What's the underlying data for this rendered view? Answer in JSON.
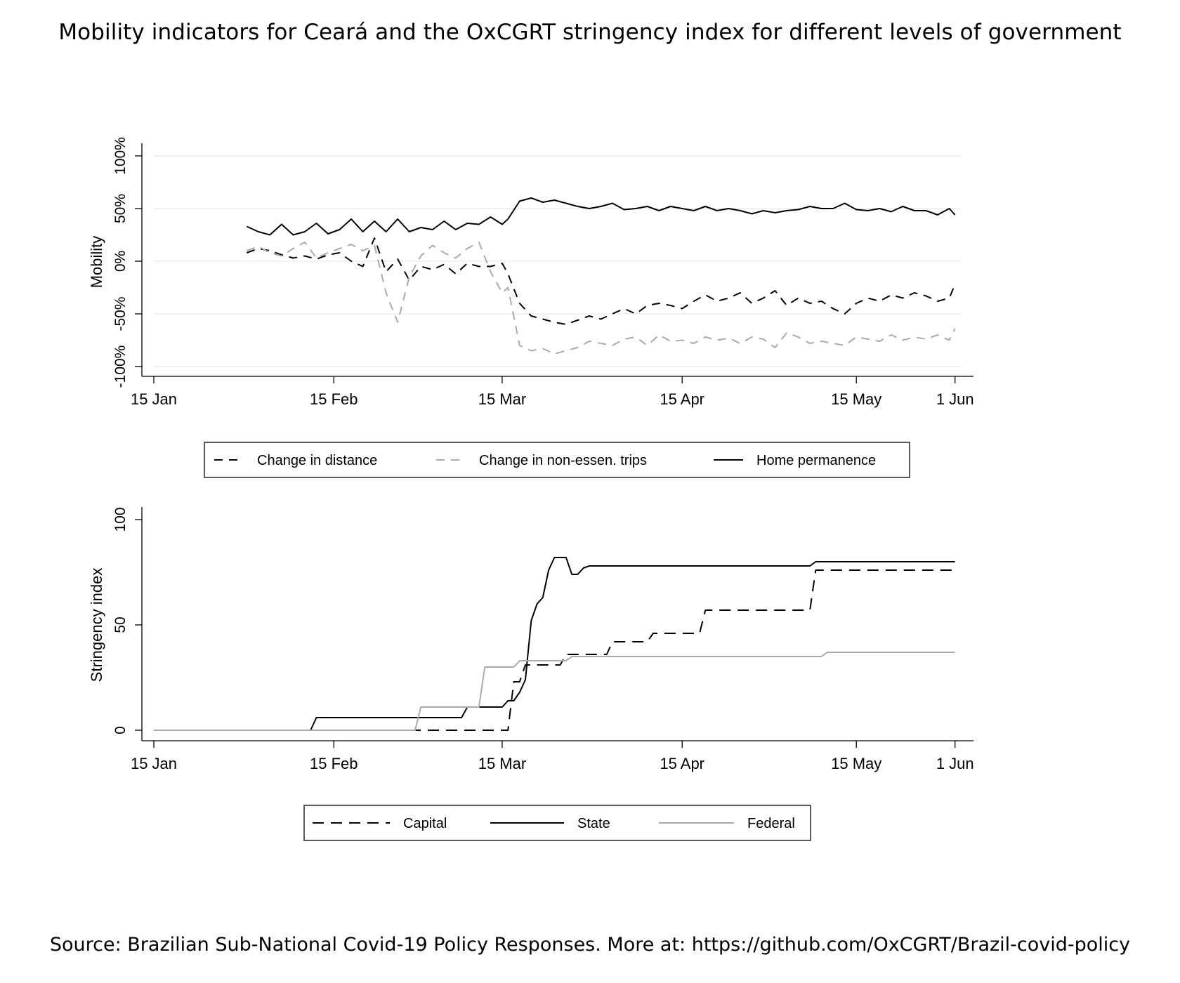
{
  "title": "Mobility indicators for Ceará and the OxCGRT stringency index for different levels of government",
  "source": "Source: Brazilian Sub-National Covid-19 Policy Responses. More at: https://github.com/OxCGRT/Brazil-covid-policy",
  "chart_data": [
    {
      "type": "line",
      "title": "",
      "xlabel": "",
      "ylabel": "Mobility",
      "xlim": [
        "2020-01-15",
        "2020-06-02"
      ],
      "ylim": [
        -100,
        100
      ],
      "x_ticks": [
        {
          "date": "2020-01-15",
          "label": "15 Jan"
        },
        {
          "date": "2020-02-15",
          "label": "15 Feb"
        },
        {
          "date": "2020-03-15",
          "label": "15 Mar"
        },
        {
          "date": "2020-04-15",
          "label": "15 Apr"
        },
        {
          "date": "2020-05-15",
          "label": "15 May"
        },
        {
          "date": "2020-06-01",
          "label": "1 Jun"
        }
      ],
      "y_ticks": [
        {
          "value": -100,
          "label": "-100%"
        },
        {
          "value": -50,
          "label": "-50%"
        },
        {
          "value": 0,
          "label": "0%"
        },
        {
          "value": 50,
          "label": "50%"
        },
        {
          "value": 100,
          "label": "100%"
        }
      ],
      "grid": true,
      "legend_position": "bottom",
      "legend": [
        "Change in distance",
        "Change in non-essen. trips",
        "Home permanence"
      ],
      "series": [
        {
          "name": "Change in distance",
          "color": "#000000",
          "dash": "12 9",
          "x": [
            "2020-01-31",
            "2020-02-02",
            "2020-02-04",
            "2020-02-06",
            "2020-02-08",
            "2020-02-10",
            "2020-02-12",
            "2020-02-14",
            "2020-02-16",
            "2020-02-18",
            "2020-02-20",
            "2020-02-22",
            "2020-02-24",
            "2020-02-26",
            "2020-02-28",
            "2020-03-01",
            "2020-03-03",
            "2020-03-05",
            "2020-03-07",
            "2020-03-09",
            "2020-03-11",
            "2020-03-13",
            "2020-03-15",
            "2020-03-16",
            "2020-03-18",
            "2020-03-20",
            "2020-03-22",
            "2020-03-24",
            "2020-03-26",
            "2020-03-28",
            "2020-03-30",
            "2020-04-01",
            "2020-04-03",
            "2020-04-05",
            "2020-04-07",
            "2020-04-09",
            "2020-04-11",
            "2020-04-13",
            "2020-04-15",
            "2020-04-17",
            "2020-04-19",
            "2020-04-21",
            "2020-04-23",
            "2020-04-25",
            "2020-04-27",
            "2020-04-29",
            "2020-05-01",
            "2020-05-03",
            "2020-05-05",
            "2020-05-07",
            "2020-05-09",
            "2020-05-11",
            "2020-05-13",
            "2020-05-15",
            "2020-05-17",
            "2020-05-19",
            "2020-05-21",
            "2020-05-23",
            "2020-05-25",
            "2020-05-27",
            "2020-05-29",
            "2020-05-31",
            "2020-06-01"
          ],
          "y": [
            8,
            12,
            10,
            6,
            3,
            5,
            2,
            6,
            8,
            0,
            -5,
            22,
            -10,
            2,
            -18,
            -5,
            -8,
            -3,
            -12,
            -2,
            -5,
            -5,
            -2,
            -12,
            -40,
            -52,
            -55,
            -58,
            -60,
            -56,
            -52,
            -55,
            -50,
            -45,
            -50,
            -42,
            -40,
            -42,
            -45,
            -38,
            -32,
            -38,
            -35,
            -30,
            -40,
            -35,
            -28,
            -42,
            -35,
            -40,
            -38,
            -45,
            -50,
            -40,
            -35,
            -38,
            -32,
            -35,
            -30,
            -33,
            -38,
            -35,
            -22
          ]
        },
        {
          "name": "Change in non-essen. trips",
          "color": "#aaaaaa",
          "dash": "12 9",
          "x": [
            "2020-01-31",
            "2020-02-02",
            "2020-02-04",
            "2020-02-06",
            "2020-02-08",
            "2020-02-10",
            "2020-02-12",
            "2020-02-14",
            "2020-02-16",
            "2020-02-18",
            "2020-02-20",
            "2020-02-22",
            "2020-02-24",
            "2020-02-26",
            "2020-02-28",
            "2020-03-01",
            "2020-03-03",
            "2020-03-05",
            "2020-03-07",
            "2020-03-09",
            "2020-03-11",
            "2020-03-13",
            "2020-03-15",
            "2020-03-16",
            "2020-03-18",
            "2020-03-20",
            "2020-03-22",
            "2020-03-24",
            "2020-03-26",
            "2020-03-28",
            "2020-03-30",
            "2020-04-01",
            "2020-04-03",
            "2020-04-05",
            "2020-04-07",
            "2020-04-09",
            "2020-04-11",
            "2020-04-13",
            "2020-04-15",
            "2020-04-17",
            "2020-04-19",
            "2020-04-21",
            "2020-04-23",
            "2020-04-25",
            "2020-04-27",
            "2020-04-29",
            "2020-05-01",
            "2020-05-03",
            "2020-05-05",
            "2020-05-07",
            "2020-05-09",
            "2020-05-11",
            "2020-05-13",
            "2020-05-15",
            "2020-05-17",
            "2020-05-19",
            "2020-05-21",
            "2020-05-23",
            "2020-05-25",
            "2020-05-27",
            "2020-05-29",
            "2020-05-31",
            "2020-06-01"
          ],
          "y": [
            10,
            14,
            8,
            5,
            12,
            18,
            3,
            8,
            12,
            16,
            10,
            15,
            -30,
            -58,
            -15,
            5,
            15,
            8,
            3,
            12,
            18,
            -10,
            -30,
            -25,
            -80,
            -85,
            -83,
            -88,
            -85,
            -82,
            -76,
            -78,
            -80,
            -74,
            -72,
            -80,
            -70,
            -76,
            -75,
            -78,
            -72,
            -75,
            -73,
            -78,
            -72,
            -74,
            -82,
            -68,
            -72,
            -78,
            -76,
            -78,
            -80,
            -72,
            -74,
            -76,
            -70,
            -75,
            -72,
            -74,
            -70,
            -75,
            -64
          ]
        },
        {
          "name": "Home permanence",
          "color": "#000000",
          "dash": "",
          "x": [
            "2020-01-31",
            "2020-02-02",
            "2020-02-04",
            "2020-02-06",
            "2020-02-08",
            "2020-02-10",
            "2020-02-12",
            "2020-02-14",
            "2020-02-16",
            "2020-02-18",
            "2020-02-20",
            "2020-02-22",
            "2020-02-24",
            "2020-02-26",
            "2020-02-28",
            "2020-03-01",
            "2020-03-03",
            "2020-03-05",
            "2020-03-07",
            "2020-03-09",
            "2020-03-11",
            "2020-03-13",
            "2020-03-15",
            "2020-03-16",
            "2020-03-18",
            "2020-03-20",
            "2020-03-22",
            "2020-03-24",
            "2020-03-26",
            "2020-03-28",
            "2020-03-30",
            "2020-04-01",
            "2020-04-03",
            "2020-04-05",
            "2020-04-07",
            "2020-04-09",
            "2020-04-11",
            "2020-04-13",
            "2020-04-15",
            "2020-04-17",
            "2020-04-19",
            "2020-04-21",
            "2020-04-23",
            "2020-04-25",
            "2020-04-27",
            "2020-04-29",
            "2020-05-01",
            "2020-05-03",
            "2020-05-05",
            "2020-05-07",
            "2020-05-09",
            "2020-05-11",
            "2020-05-13",
            "2020-05-15",
            "2020-05-17",
            "2020-05-19",
            "2020-05-21",
            "2020-05-23",
            "2020-05-25",
            "2020-05-27",
            "2020-05-29",
            "2020-05-31",
            "2020-06-01"
          ],
          "y": [
            33,
            28,
            25,
            35,
            25,
            28,
            36,
            26,
            30,
            40,
            28,
            38,
            28,
            40,
            28,
            32,
            30,
            38,
            30,
            36,
            35,
            42,
            35,
            40,
            57,
            60,
            56,
            58,
            55,
            52,
            50,
            52,
            55,
            49,
            50,
            52,
            48,
            52,
            50,
            48,
            52,
            48,
            50,
            48,
            45,
            48,
            46,
            48,
            49,
            52,
            50,
            50,
            55,
            49,
            48,
            50,
            47,
            52,
            48,
            48,
            44,
            50,
            44
          ]
        }
      ]
    },
    {
      "type": "line",
      "title": "",
      "xlabel": "",
      "ylabel": "Stringency index",
      "xlim": [
        "2020-01-15",
        "2020-06-02"
      ],
      "ylim": [
        0,
        100
      ],
      "x_ticks": [
        {
          "date": "2020-01-15",
          "label": "15 Jan"
        },
        {
          "date": "2020-02-15",
          "label": "15 Feb"
        },
        {
          "date": "2020-03-15",
          "label": "15 Mar"
        },
        {
          "date": "2020-04-15",
          "label": "15 Apr"
        },
        {
          "date": "2020-05-15",
          "label": "15 May"
        },
        {
          "date": "2020-06-01",
          "label": "1 Jun"
        }
      ],
      "y_ticks": [
        {
          "value": 0,
          "label": "0"
        },
        {
          "value": 50,
          "label": "50"
        },
        {
          "value": 100,
          "label": "100"
        }
      ],
      "grid": false,
      "legend_position": "bottom",
      "legend": [
        "Capital",
        "State",
        "Federal"
      ],
      "series": [
        {
          "name": "Capital",
          "color": "#000000",
          "dash": "16 10",
          "x": [
            "2020-01-15",
            "2020-03-16",
            "2020-03-17",
            "2020-03-18",
            "2020-03-19",
            "2020-03-20",
            "2020-03-25",
            "2020-03-26",
            "2020-03-28",
            "2020-03-29",
            "2020-04-02",
            "2020-04-03",
            "2020-04-09",
            "2020-04-10",
            "2020-04-18",
            "2020-04-19",
            "2020-05-07",
            "2020-05-08",
            "2020-06-01"
          ],
          "y": [
            0,
            0,
            23,
            23,
            31,
            31,
            31,
            36,
            36,
            36,
            36,
            42,
            42,
            46,
            46,
            57,
            57,
            76,
            76
          ]
        },
        {
          "name": "State",
          "color": "#000000",
          "dash": "",
          "x": [
            "2020-01-15",
            "2020-02-11",
            "2020-02-12",
            "2020-03-08",
            "2020-03-09",
            "2020-03-15",
            "2020-03-16",
            "2020-03-17",
            "2020-03-18",
            "2020-03-19",
            "2020-03-20",
            "2020-03-21",
            "2020-03-22",
            "2020-03-23",
            "2020-03-24",
            "2020-03-26",
            "2020-03-27",
            "2020-03-28",
            "2020-03-29",
            "2020-03-30",
            "2020-04-01",
            "2020-05-07",
            "2020-05-08",
            "2020-06-01"
          ],
          "y": [
            0,
            0,
            6,
            6,
            11,
            11,
            14,
            14,
            18,
            24,
            52,
            60,
            63,
            76,
            82,
            82,
            74,
            74,
            77,
            78,
            78,
            78,
            80,
            80
          ]
        },
        {
          "name": "Federal",
          "color": "#aaaaaa",
          "dash": "",
          "x": [
            "2020-01-15",
            "2020-02-29",
            "2020-03-01",
            "2020-03-11",
            "2020-03-12",
            "2020-03-17",
            "2020-03-18",
            "2020-03-26",
            "2020-03-27",
            "2020-05-09",
            "2020-05-10",
            "2020-06-01"
          ],
          "y": [
            0,
            0,
            11,
            11,
            30,
            30,
            33,
            33,
            35,
            35,
            37,
            37
          ]
        }
      ]
    }
  ]
}
